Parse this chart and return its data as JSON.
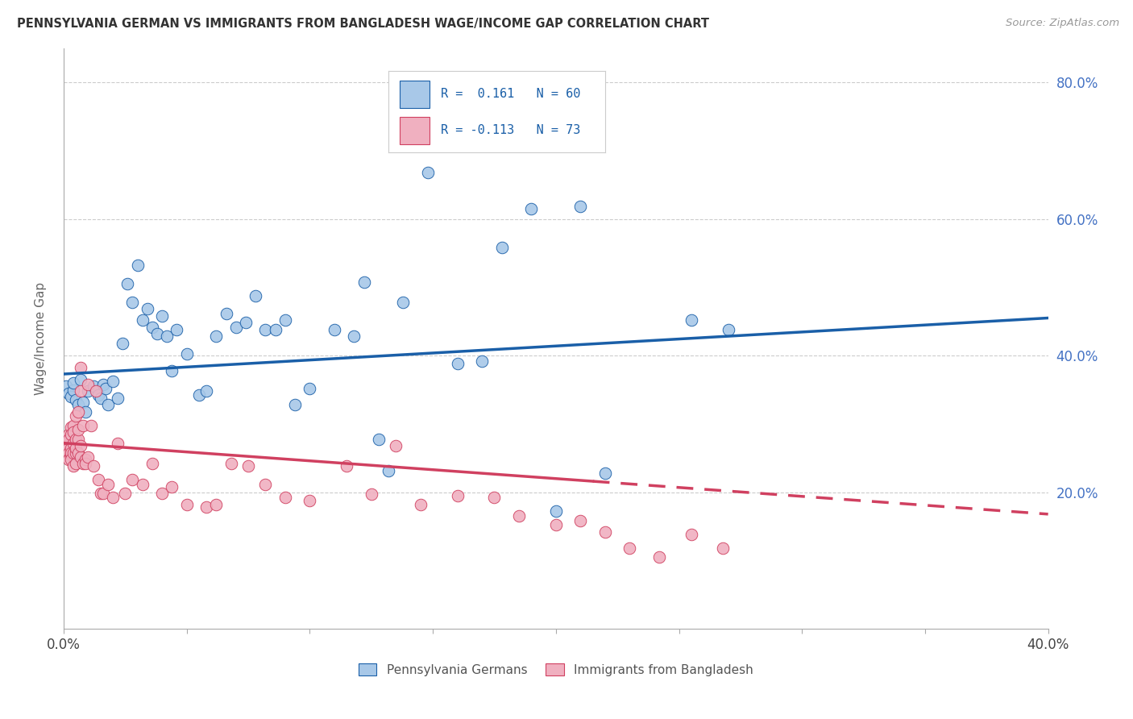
{
  "title": "PENNSYLVANIA GERMAN VS IMMIGRANTS FROM BANGLADESH WAGE/INCOME GAP CORRELATION CHART",
  "source": "Source: ZipAtlas.com",
  "ylabel": "Wage/Income Gap",
  "yaxis_ticks": [
    "20.0%",
    "40.0%",
    "60.0%",
    "80.0%"
  ],
  "legend_bottom1": "Pennsylvania Germans",
  "legend_bottom2": "Immigrants from Bangladesh",
  "blue_color": "#a8c8e8",
  "pink_color": "#f0b0c0",
  "blue_line_color": "#1a5fa8",
  "pink_line_color": "#d04060",
  "blue_scatter": [
    [
      0.001,
      0.355
    ],
    [
      0.002,
      0.345
    ],
    [
      0.003,
      0.34
    ],
    [
      0.004,
      0.35
    ],
    [
      0.004,
      0.36
    ],
    [
      0.005,
      0.335
    ],
    [
      0.006,
      0.328
    ],
    [
      0.007,
      0.365
    ],
    [
      0.008,
      0.332
    ],
    [
      0.009,
      0.318
    ],
    [
      0.01,
      0.348
    ],
    [
      0.012,
      0.355
    ],
    [
      0.014,
      0.342
    ],
    [
      0.015,
      0.338
    ],
    [
      0.016,
      0.358
    ],
    [
      0.017,
      0.352
    ],
    [
      0.018,
      0.328
    ],
    [
      0.02,
      0.362
    ],
    [
      0.022,
      0.338
    ],
    [
      0.024,
      0.418
    ],
    [
      0.026,
      0.505
    ],
    [
      0.028,
      0.478
    ],
    [
      0.03,
      0.532
    ],
    [
      0.032,
      0.452
    ],
    [
      0.034,
      0.468
    ],
    [
      0.036,
      0.442
    ],
    [
      0.038,
      0.432
    ],
    [
      0.04,
      0.458
    ],
    [
      0.042,
      0.428
    ],
    [
      0.044,
      0.378
    ],
    [
      0.046,
      0.438
    ],
    [
      0.05,
      0.402
    ],
    [
      0.055,
      0.342
    ],
    [
      0.058,
      0.348
    ],
    [
      0.062,
      0.428
    ],
    [
      0.066,
      0.462
    ],
    [
      0.07,
      0.442
    ],
    [
      0.074,
      0.448
    ],
    [
      0.078,
      0.488
    ],
    [
      0.082,
      0.438
    ],
    [
      0.086,
      0.438
    ],
    [
      0.09,
      0.452
    ],
    [
      0.094,
      0.328
    ],
    [
      0.1,
      0.352
    ],
    [
      0.11,
      0.438
    ],
    [
      0.118,
      0.428
    ],
    [
      0.122,
      0.508
    ],
    [
      0.128,
      0.278
    ],
    [
      0.132,
      0.232
    ],
    [
      0.138,
      0.478
    ],
    [
      0.148,
      0.668
    ],
    [
      0.16,
      0.388
    ],
    [
      0.17,
      0.392
    ],
    [
      0.178,
      0.558
    ],
    [
      0.19,
      0.615
    ],
    [
      0.2,
      0.172
    ],
    [
      0.21,
      0.618
    ],
    [
      0.22,
      0.228
    ],
    [
      0.255,
      0.452
    ],
    [
      0.27,
      0.438
    ]
  ],
  "pink_scatter": [
    [
      0.001,
      0.268
    ],
    [
      0.001,
      0.262
    ],
    [
      0.002,
      0.285
    ],
    [
      0.002,
      0.258
    ],
    [
      0.002,
      0.278
    ],
    [
      0.002,
      0.248
    ],
    [
      0.003,
      0.265
    ],
    [
      0.003,
      0.255
    ],
    [
      0.003,
      0.295
    ],
    [
      0.003,
      0.258
    ],
    [
      0.003,
      0.248
    ],
    [
      0.003,
      0.285
    ],
    [
      0.004,
      0.258
    ],
    [
      0.004,
      0.272
    ],
    [
      0.004,
      0.298
    ],
    [
      0.004,
      0.238
    ],
    [
      0.004,
      0.288
    ],
    [
      0.005,
      0.278
    ],
    [
      0.005,
      0.242
    ],
    [
      0.005,
      0.312
    ],
    [
      0.005,
      0.258
    ],
    [
      0.005,
      0.265
    ],
    [
      0.006,
      0.278
    ],
    [
      0.006,
      0.318
    ],
    [
      0.006,
      0.258
    ],
    [
      0.006,
      0.292
    ],
    [
      0.007,
      0.252
    ],
    [
      0.007,
      0.382
    ],
    [
      0.007,
      0.348
    ],
    [
      0.007,
      0.268
    ],
    [
      0.008,
      0.242
    ],
    [
      0.008,
      0.298
    ],
    [
      0.009,
      0.248
    ],
    [
      0.009,
      0.242
    ],
    [
      0.01,
      0.358
    ],
    [
      0.01,
      0.252
    ],
    [
      0.011,
      0.298
    ],
    [
      0.012,
      0.238
    ],
    [
      0.013,
      0.348
    ],
    [
      0.014,
      0.218
    ],
    [
      0.015,
      0.198
    ],
    [
      0.016,
      0.198
    ],
    [
      0.018,
      0.212
    ],
    [
      0.02,
      0.192
    ],
    [
      0.022,
      0.272
    ],
    [
      0.025,
      0.198
    ],
    [
      0.028,
      0.218
    ],
    [
      0.032,
      0.212
    ],
    [
      0.036,
      0.242
    ],
    [
      0.04,
      0.198
    ],
    [
      0.044,
      0.208
    ],
    [
      0.05,
      0.182
    ],
    [
      0.058,
      0.178
    ],
    [
      0.062,
      0.182
    ],
    [
      0.068,
      0.242
    ],
    [
      0.075,
      0.238
    ],
    [
      0.082,
      0.212
    ],
    [
      0.09,
      0.192
    ],
    [
      0.1,
      0.188
    ],
    [
      0.115,
      0.238
    ],
    [
      0.125,
      0.197
    ],
    [
      0.135,
      0.268
    ],
    [
      0.145,
      0.182
    ],
    [
      0.16,
      0.195
    ],
    [
      0.175,
      0.192
    ],
    [
      0.185,
      0.165
    ],
    [
      0.2,
      0.152
    ],
    [
      0.21,
      0.158
    ],
    [
      0.22,
      0.142
    ],
    [
      0.23,
      0.118
    ],
    [
      0.242,
      0.105
    ],
    [
      0.255,
      0.138
    ],
    [
      0.268,
      0.118
    ]
  ],
  "xlim": [
    0.0,
    0.4
  ],
  "ylim": [
    0.0,
    0.85
  ],
  "blue_trend_x": [
    0.0,
    0.4
  ],
  "blue_trend_y": [
    0.373,
    0.455
  ],
  "pink_trend_x": [
    0.0,
    0.4
  ],
  "pink_trend_y": [
    0.272,
    0.168
  ],
  "pink_trend_solid_end": 0.215,
  "background_color": "#ffffff",
  "grid_color": "#cccccc"
}
